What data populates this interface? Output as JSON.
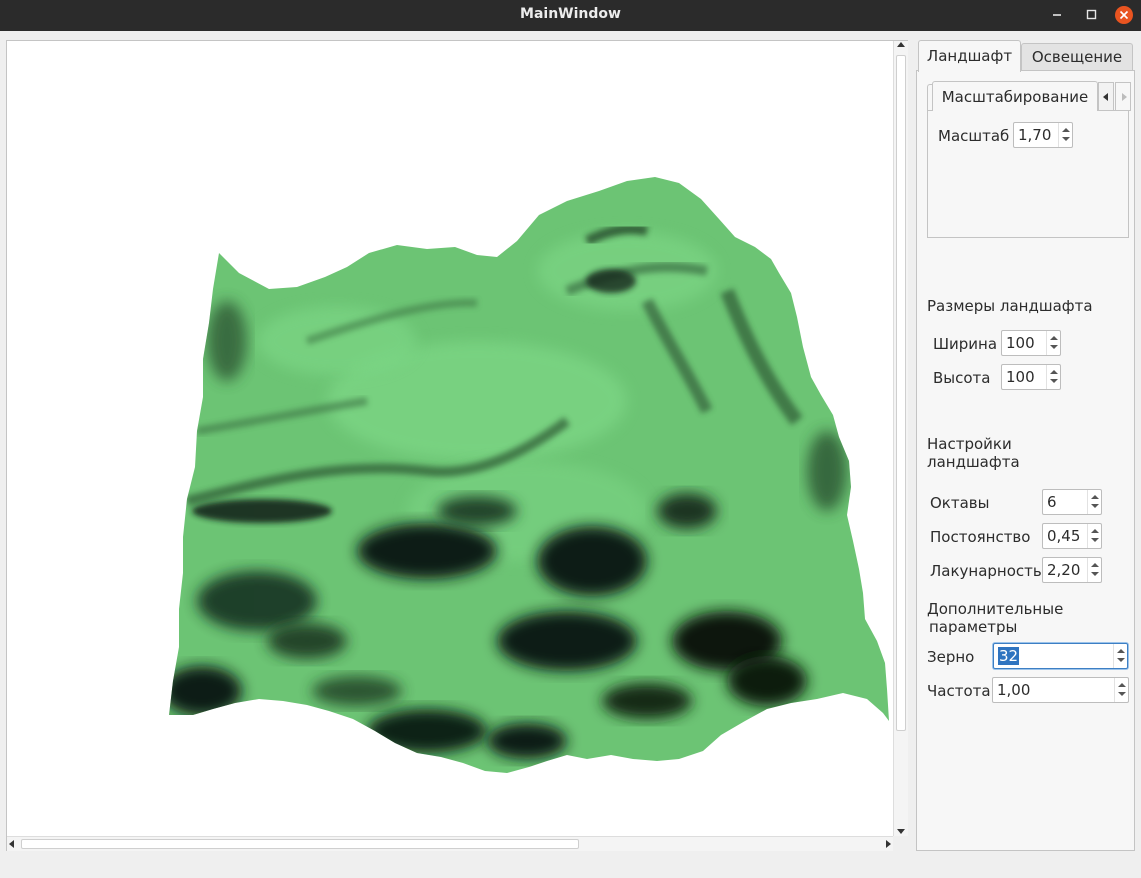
{
  "window": {
    "title": "MainWindow"
  },
  "viewport": {
    "surface_color": "#6cc474",
    "shadow_color": "#0f1f12"
  },
  "tabs": [
    {
      "label": "Ландшафт",
      "active": true
    },
    {
      "label": "Освещение",
      "active": false
    }
  ],
  "scaling": {
    "subtab_label": "Масштабирование",
    "scale_label": "Масштаб",
    "scale_value": "1,70"
  },
  "dimensions": {
    "heading": "Размеры ландшафта",
    "width_label": "Ширина",
    "width_value": "100",
    "height_label": "Высота",
    "height_value": "100"
  },
  "settings": {
    "heading_line1": "Настройки",
    "heading_line2": "ландшафта",
    "octaves_label": "Октавы",
    "octaves_value": "6",
    "persistence_label": "Постоянство",
    "persistence_value": "0,45",
    "lacunarity_label": "Лакунарность",
    "lacunarity_value": "2,20"
  },
  "extra": {
    "heading_line1": "Дополнительные",
    "heading_line2": "параметры",
    "seed_label": "Зерно",
    "seed_value": "32",
    "frequency_label": "Частота",
    "frequency_value": "1,00"
  }
}
